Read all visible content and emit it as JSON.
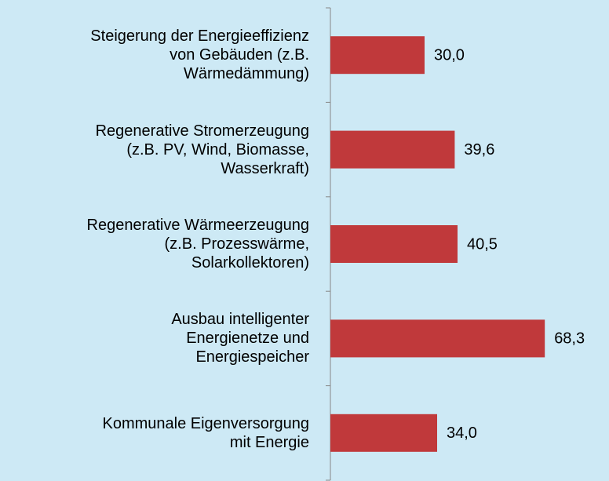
{
  "chart_data": {
    "type": "hbar",
    "categories": [
      "Steigerung der Energieeffizienz\nvon Gebäuden (z.B.\nWärmedämmung)",
      "Regenerative Stromerzeugung\n(z.B. PV, Wind, Biomasse,\nWasserkraft)",
      "Regenerative Wärmeerzeugung\n(z.B. Prozesswärme,\nSolarkollektoren)",
      "Ausbau intelligenter\nEnergienetze und\nEnergiespeicher",
      "Kommunale Eigenversorgung\nmit Energie"
    ],
    "values": [
      30.0,
      39.6,
      40.5,
      68.3,
      34.0
    ],
    "value_labels": [
      "30,0",
      "39,6",
      "40,5",
      "68,3",
      "34,0"
    ],
    "color": "#c0393b",
    "xlim": [
      0,
      90
    ]
  }
}
